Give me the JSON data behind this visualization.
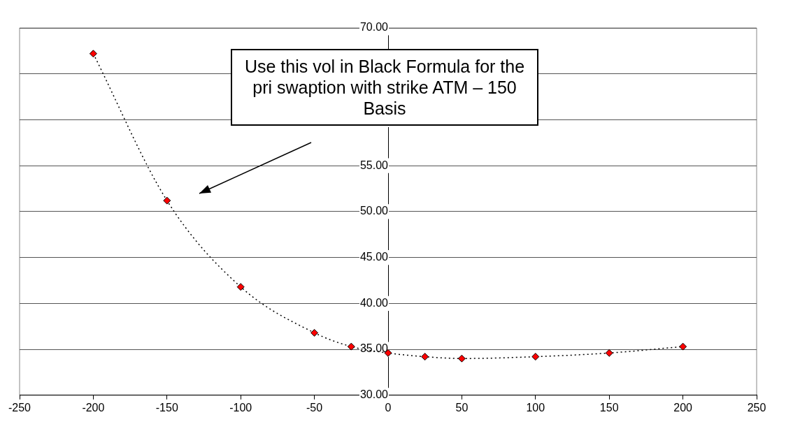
{
  "chart_data": {
    "type": "scatter",
    "x": [
      -200,
      -150,
      -100,
      -50,
      -25,
      0,
      25,
      50,
      100,
      150,
      200
    ],
    "series": [
      {
        "type": "line",
        "color": "#ff0000",
        "values": [
          67.2,
          51.2,
          41.8,
          36.8,
          35.3,
          34.6,
          34.2,
          34.0,
          34.2,
          34.6,
          35.3
        ]
      }
    ],
    "xlim": [
      -250,
      250
    ],
    "xticks": [
      -250,
      -200,
      -150,
      -100,
      -50,
      0,
      50,
      100,
      150,
      200,
      250
    ],
    "ylim": [
      30,
      70
    ],
    "yticks": [
      {
        "value": 30,
        "label": "30.00"
      },
      {
        "value": 35,
        "label": "35.00"
      },
      {
        "value": 40,
        "label": "40.00"
      },
      {
        "value": 45,
        "label": "45.00"
      },
      {
        "value": 50,
        "label": "50.00"
      },
      {
        "value": 55,
        "label": "55.00"
      },
      {
        "value": 60,
        "label": null
      },
      {
        "value": 65,
        "label": null
      },
      {
        "value": 70,
        "label": "70.00"
      }
    ],
    "grid": "y",
    "marker": "diamond",
    "line_style": "dotted",
    "legend": false,
    "annotations": [
      "Use this vol in Black Formula for the pri swaption with strike ATM – 150 Basis"
    ]
  }
}
